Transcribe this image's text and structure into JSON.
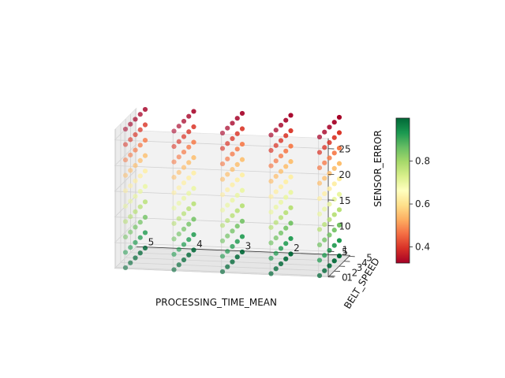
{
  "chart_data": {
    "type": "scatter",
    "projection": "3d",
    "xlabel": "PROCESSING_TIME_MEAN",
    "ylabel": "BELT_SPEED",
    "zlabel": "SENSOR_ERROR",
    "x_ticks": [
      "5",
      "4",
      "3",
      "2",
      "1"
    ],
    "y_ticks": [
      "1",
      "2",
      "3",
      "4",
      "5"
    ],
    "z_ticks": [
      "0",
      "5",
      "10",
      "15",
      "20",
      "25"
    ],
    "xlim": [
      0.8,
      5.2
    ],
    "ylim": [
      0.8,
      5.2
    ],
    "zlim": [
      0,
      27
    ],
    "x_values": [
      1,
      2,
      3,
      4,
      5
    ],
    "y_values": [
      1,
      2,
      3,
      4,
      5
    ],
    "z_values": [
      0,
      3,
      6,
      9,
      12,
      15,
      18,
      21,
      24,
      27
    ],
    "color_formula": "1 - 0.025 * z",
    "colorbar": {
      "colormap": "RdYlGn",
      "range": [
        0.325,
        1.0
      ],
      "ticks": [
        "0.4",
        "0.6",
        "0.8"
      ]
    },
    "grid": true
  }
}
